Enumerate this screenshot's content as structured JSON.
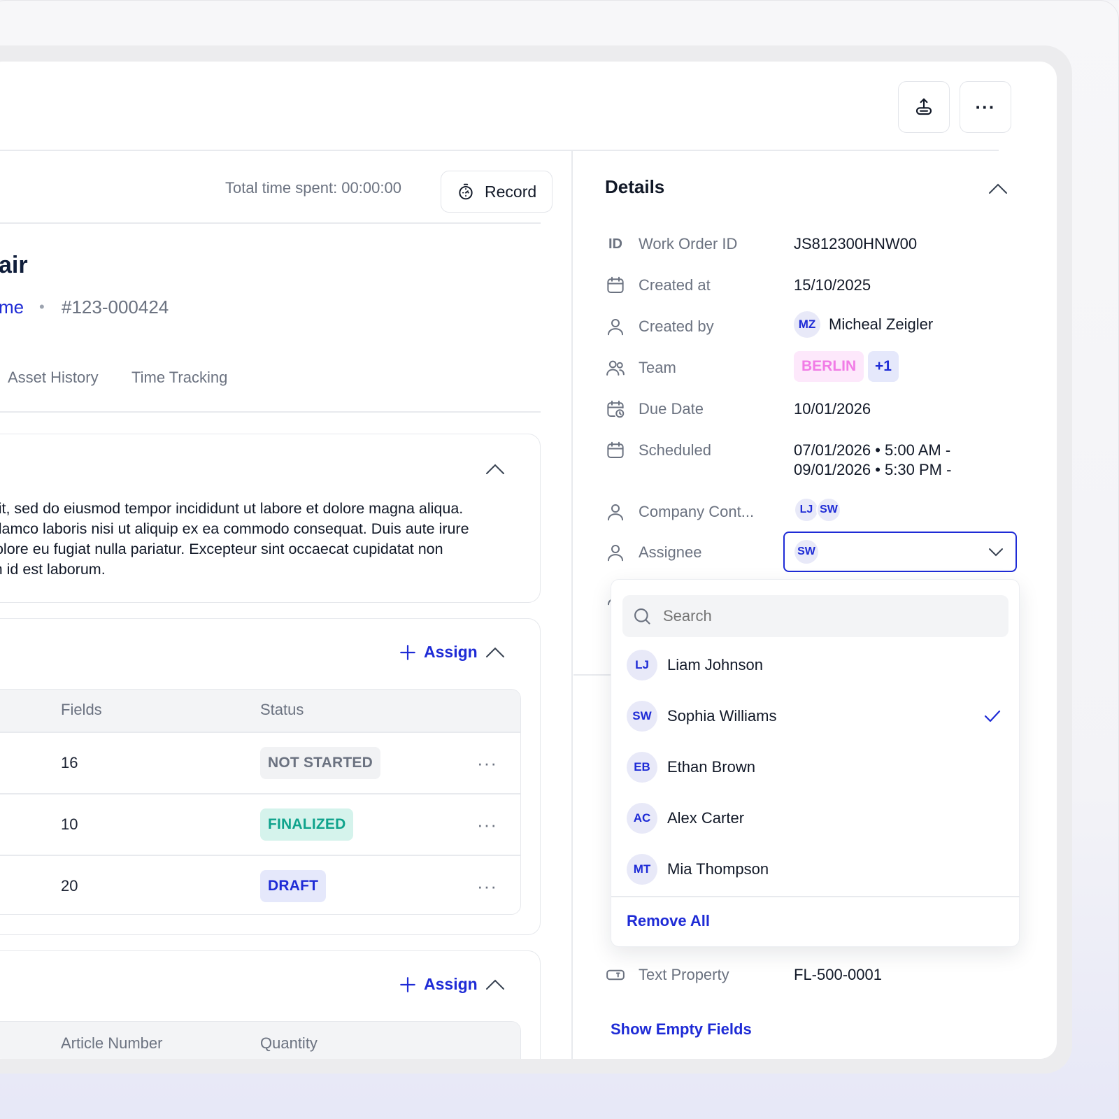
{
  "header": {
    "share_icon": "share-upload-icon",
    "more_icon": "more-horizontal-icon",
    "more_label": "···"
  },
  "work_order": {
    "title_partial": "air",
    "link_partial": "me",
    "separator": "•",
    "number": "#123-000424",
    "time_spent_label": "Total time spent: 00:00:00",
    "record_label": "Record",
    "tabs": [
      {
        "label": "Asset History"
      },
      {
        "label": "Time Tracking"
      }
    ],
    "description_lines": [
      "elit, sed do eiusmod tempor incididunt ut labore et dolore magna aliqua.",
      "ullamco laboris nisi ut aliquip ex ea commodo consequat. Duis aute irure",
      "dolore eu fugiat nulla pariatur. Excepteur sint occaecat cupidatat non",
      "im id est laborum."
    ]
  },
  "forms_section": {
    "assign_label": "Assign",
    "columns": [
      "Fields",
      "Status"
    ],
    "rows": [
      {
        "fields": "16",
        "status": "NOT STARTED",
        "status_color": "#6b7280",
        "status_bg": "#f1f2f4"
      },
      {
        "fields": "10",
        "status": "FINALIZED",
        "status_color": "#0fa38c",
        "status_bg": "#d5f3ec"
      },
      {
        "fields": "20",
        "status": "DRAFT",
        "status_color": "#1e2bd6",
        "status_bg": "#e5e8fb"
      }
    ],
    "row_menu": "···"
  },
  "parts_section": {
    "assign_label": "Assign",
    "columns": [
      "Article Number",
      "Quantity"
    ]
  },
  "details": {
    "title": "Details",
    "work_order_id_icon": "ID",
    "work_order_id_label": "Work Order ID",
    "work_order_id_value": "JS812300HNW00",
    "created_at_label": "Created at",
    "created_at_value": "15/10/2025",
    "created_by_label": "Created by",
    "created_by_initials": "MZ",
    "created_by_name": "Micheal Zeigler",
    "team_label": "Team",
    "team_tag": "BERLIN",
    "team_more": "+1",
    "due_date_label": "Due Date",
    "due_date_value": "10/01/2026",
    "scheduled_label": "Scheduled",
    "scheduled_line1": "07/01/2026 • 5:00 AM -",
    "scheduled_line2": "09/01/2026 • 5:30 PM -",
    "company_contact_label": "Company Cont...",
    "company_contact_avatars": [
      "LJ",
      "SW"
    ],
    "assignee_label": "Assignee",
    "assignee_selected": "SW",
    "text_property_label": "Text Property",
    "text_property_value": "FL-500-0001",
    "show_empty_label": "Show Empty Fields",
    "accent_color": "#1e2bd6"
  },
  "assignee_dropdown": {
    "search_placeholder": "Search",
    "options": [
      {
        "initials": "LJ",
        "name": "Liam Johnson",
        "selected": false
      },
      {
        "initials": "SW",
        "name": "Sophia Williams",
        "selected": true
      },
      {
        "initials": "EB",
        "name": "Ethan Brown",
        "selected": false
      },
      {
        "initials": "AC",
        "name": "Alex Carter",
        "selected": false
      },
      {
        "initials": "MT",
        "name": "Mia Thompson",
        "selected": false
      }
    ],
    "remove_all_label": "Remove All"
  }
}
